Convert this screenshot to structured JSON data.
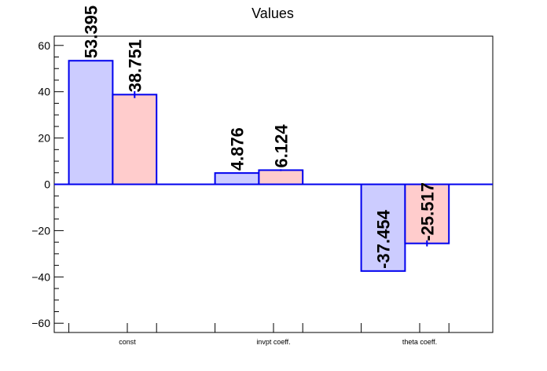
{
  "chart_data": {
    "type": "bar",
    "title": "Values",
    "categories": [
      "const",
      "invpt coeff.",
      "theta coeff."
    ],
    "series": [
      {
        "values": [
          53.395,
          4.876,
          -37.454
        ],
        "errors": [
          0,
          0,
          0
        ],
        "fill": "#ccccff",
        "stroke": "#0000ee"
      },
      {
        "values": [
          38.751,
          6.124,
          -25.517
        ],
        "errors": [
          1.5,
          0.4,
          1.3
        ],
        "fill": "#ffcccc",
        "stroke": "#0000ee"
      }
    ],
    "data_labels": [
      [
        "53.395",
        "4.876",
        "-37.454"
      ],
      [
        "38.751",
        "6.124",
        "-25.517"
      ]
    ],
    "ylim": [
      -64,
      64
    ],
    "yticks": [
      -60,
      -40,
      -20,
      0,
      20,
      40,
      60
    ],
    "ytick_labels": [
      "−60",
      "−40",
      "−20",
      "0",
      "20",
      "40",
      "60"
    ],
    "grid": false,
    "xlabel": "",
    "ylabel": ""
  }
}
